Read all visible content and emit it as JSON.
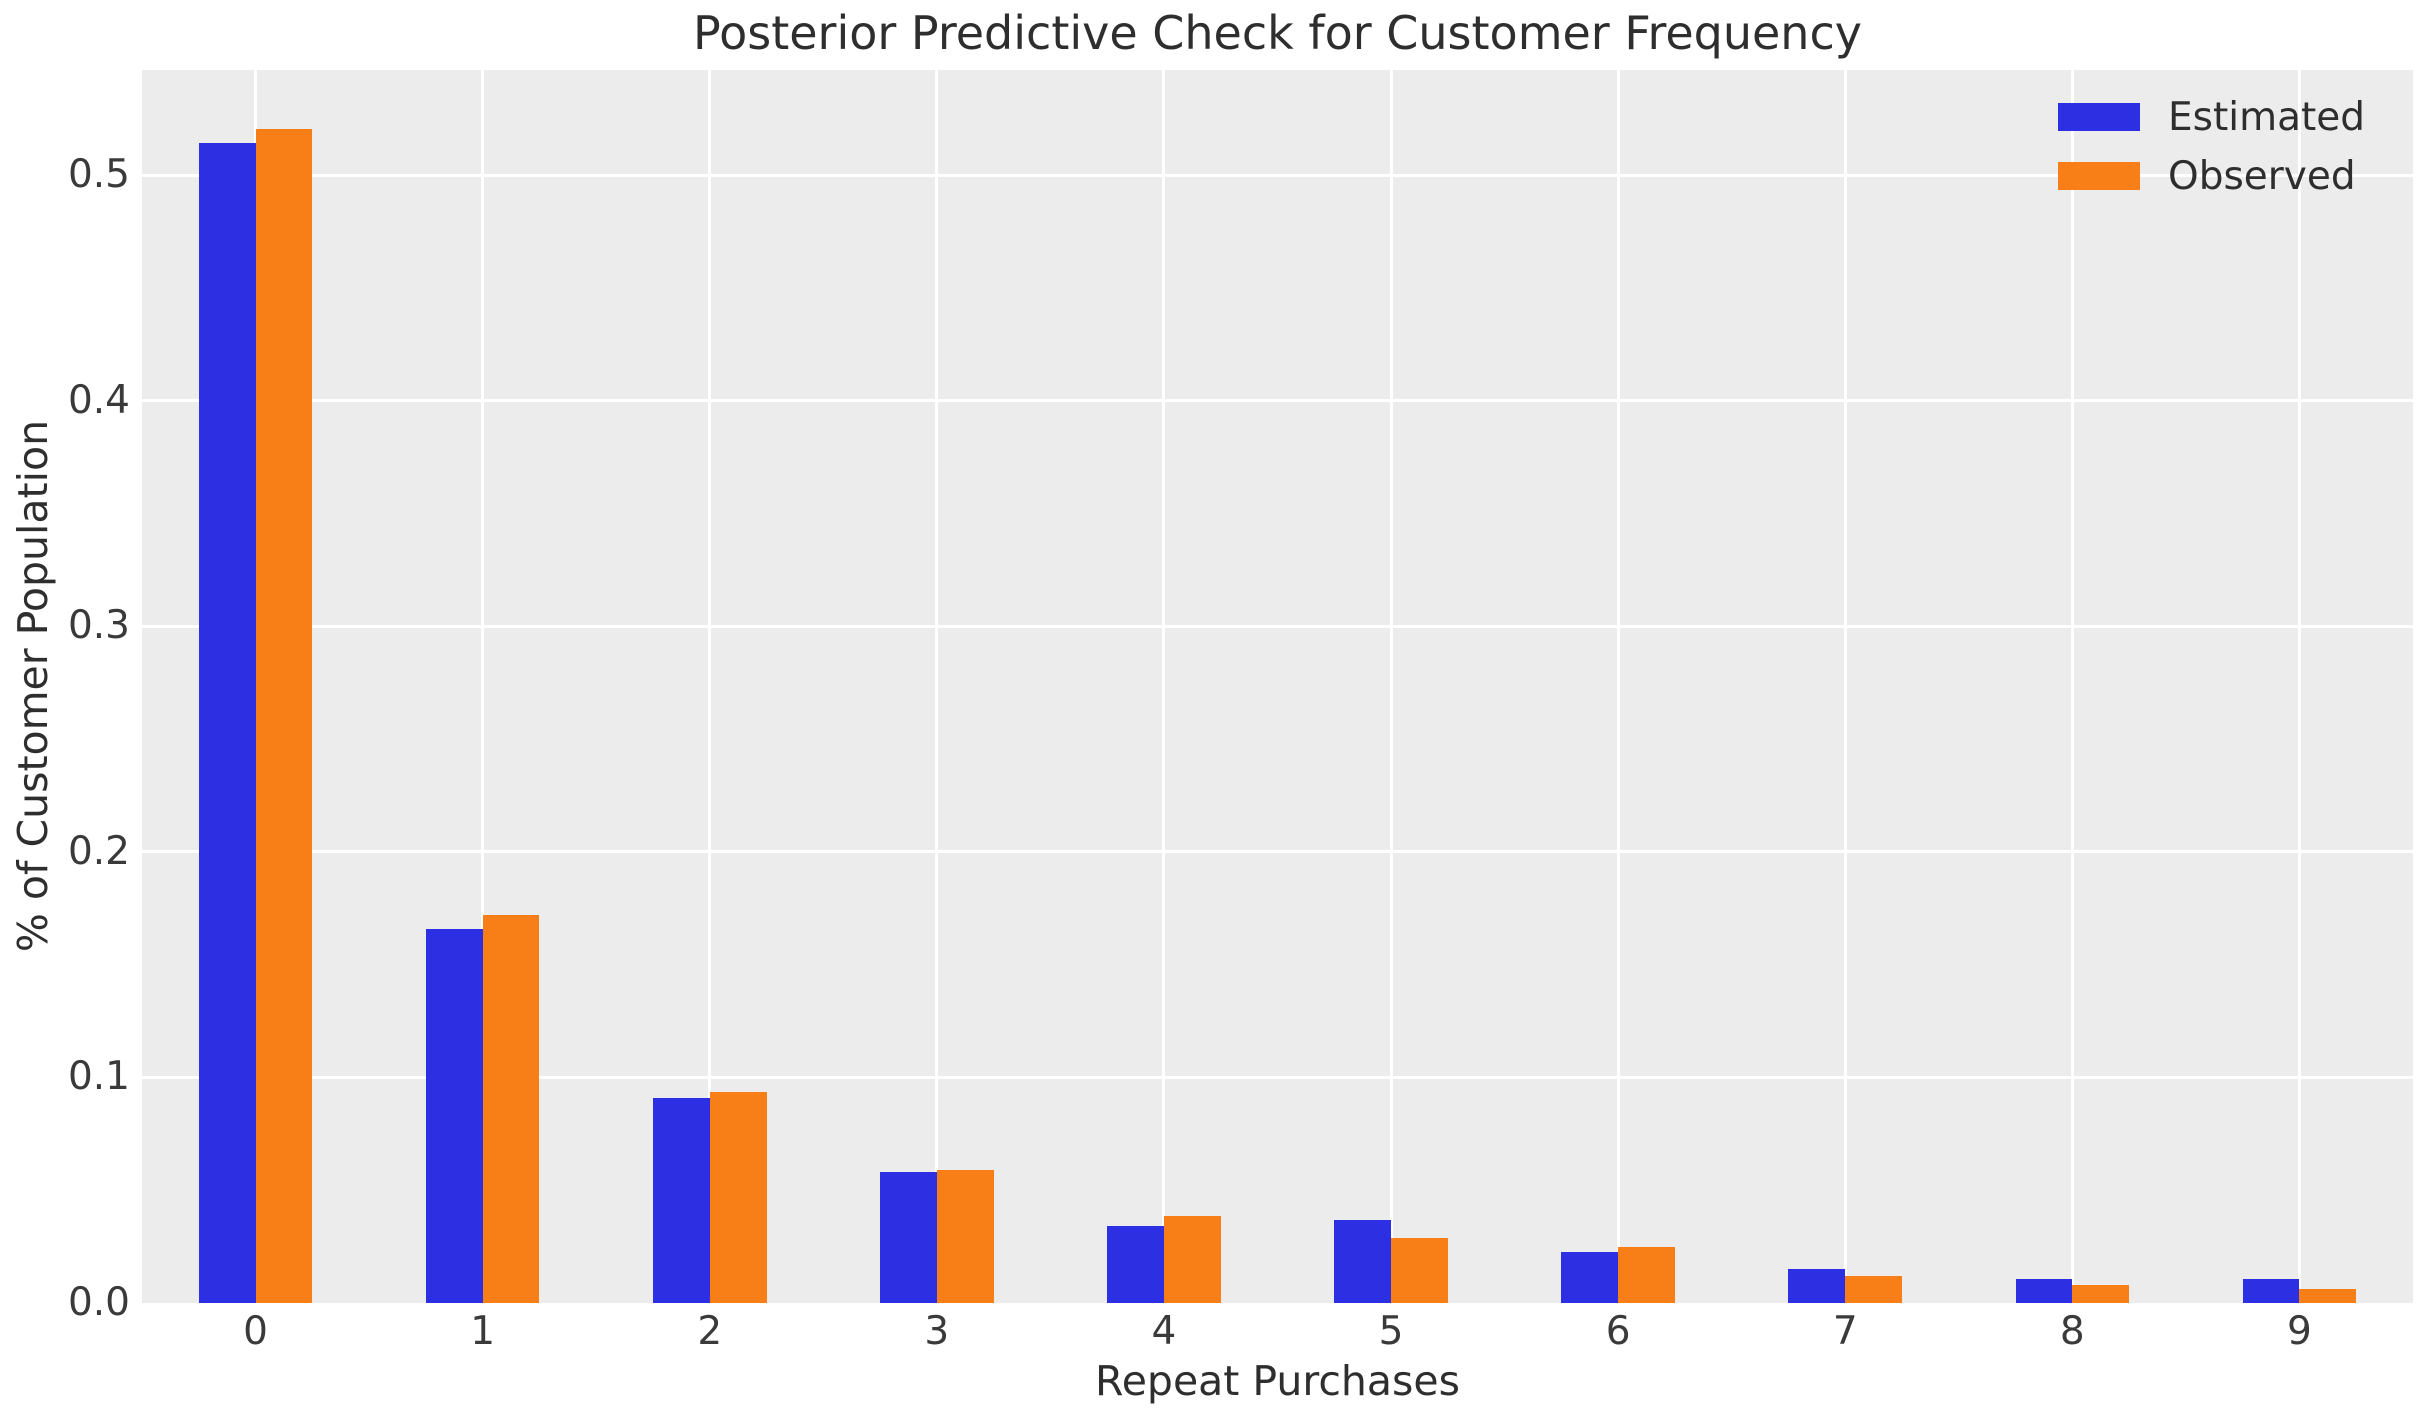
{
  "chart_data": {
    "type": "bar",
    "title": "Posterior Predictive Check for Customer Frequency",
    "xlabel": "Repeat Purchases",
    "ylabel": "% of Customer Population",
    "categories": [
      "0",
      "1",
      "2",
      "3",
      "4",
      "5",
      "6",
      "7",
      "8",
      "9"
    ],
    "series": [
      {
        "name": "Estimated",
        "color": "#2d2fe3",
        "values": [
          0.5145,
          0.166,
          0.0907,
          0.0579,
          0.0343,
          0.0366,
          0.0226,
          0.0151,
          0.0106,
          0.0105
        ]
      },
      {
        "name": "Observed",
        "color": "#f87e17",
        "values": [
          0.5205,
          0.1722,
          0.0936,
          0.0591,
          0.0387,
          0.0289,
          0.0249,
          0.0118,
          0.008,
          0.0062
        ]
      }
    ],
    "ylim": [
      0,
      0.5467
    ],
    "yticks": [
      0,
      0.1,
      0.2,
      0.3,
      0.4,
      0.5
    ],
    "ytick_labels": [
      "0.0",
      "0.1",
      "0.2",
      "0.3",
      "0.4",
      "0.5"
    ],
    "bar_width_fraction": 0.25,
    "grid": true,
    "legend_position": "upper right",
    "style": {
      "figure_bg": "#ffffff",
      "plot_bg": "#ececec",
      "grid_color": "#ffffff",
      "title_color": "#2e2e2e",
      "tick_color": "#3a3a3a"
    }
  }
}
